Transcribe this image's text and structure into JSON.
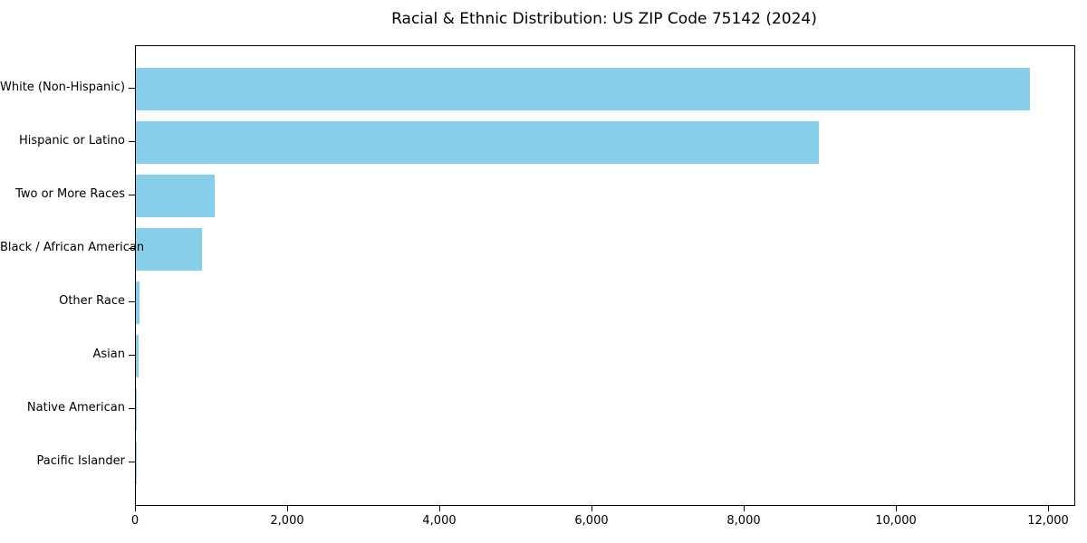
{
  "figure": {
    "background_color": "#ffffff"
  },
  "chart_data": {
    "type": "bar",
    "orientation": "horizontal",
    "title": "Racial & Ethnic Distribution: US ZIP Code 75142 (2024)",
    "categories": [
      "White (Non-Hispanic)",
      "Hispanic or Latino",
      "Two or More Races",
      "Black / African American",
      "Other Race",
      "Asian",
      "Native American",
      "Pacific Islander"
    ],
    "values": [
      11750,
      8980,
      1035,
      870,
      50,
      40,
      8,
      4
    ],
    "xlabel": "",
    "ylabel": "",
    "xlim": [
      0,
      12333
    ],
    "xticks": [
      0,
      2000,
      4000,
      6000,
      8000,
      10000,
      12000
    ],
    "xtick_labels": [
      "0",
      "2,000",
      "4,000",
      "6,000",
      "8,000",
      "10,000",
      "12,000"
    ],
    "bar_color": "#87CEEB",
    "axis_color": "#000000",
    "grid": false,
    "legend": null
  }
}
